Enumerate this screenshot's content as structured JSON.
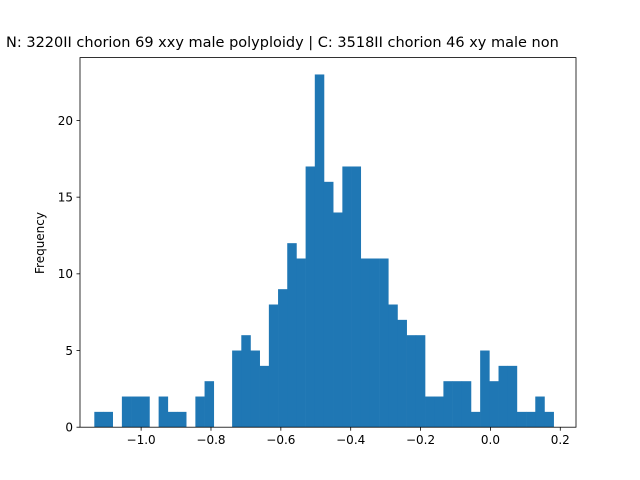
{
  "chart_data": {
    "type": "bar",
    "title": "N: 3220II chorion 69 xxy male polyploidy | C: 3518II chorion 46 xy male non",
    "xlabel": "",
    "ylabel": "Frequency",
    "xlim": [
      -1.175,
      0.245
    ],
    "ylim": [
      0,
      24.1
    ],
    "xticks": [
      -1.0,
      -0.8,
      -0.6,
      -0.4,
      -0.2,
      0.0,
      0.2
    ],
    "xtick_labels": [
      "−1.0",
      "−0.8",
      "−0.6",
      "−0.4",
      "−0.2",
      "0.0",
      "0.2"
    ],
    "yticks": [
      0,
      5,
      10,
      15,
      20
    ],
    "ytick_labels": [
      "0",
      "5",
      "10",
      "15",
      "20"
    ],
    "bin_start": -1.134,
    "bin_width": 0.0263,
    "values": [
      1,
      1,
      0,
      2,
      2,
      2,
      0,
      2,
      1,
      1,
      0,
      2,
      3,
      0,
      0,
      5,
      6,
      5,
      4,
      8,
      9,
      12,
      11,
      17,
      23,
      16,
      14,
      17,
      17,
      11,
      11,
      11,
      8,
      7,
      6,
      6,
      2,
      2,
      3,
      3,
      3,
      1,
      5,
      3,
      4,
      4,
      1,
      1,
      2,
      1
    ],
    "color": "#1f77b4",
    "grid": false
  }
}
